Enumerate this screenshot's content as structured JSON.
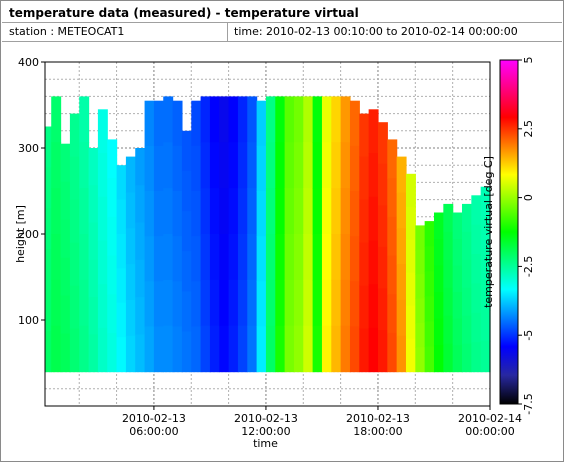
{
  "header": {
    "title": "temperature data (measured) - temperature virtual",
    "station": "station : METEOCAT1",
    "time_range": "time: 2010-02-13 00:10:00 to 2010-02-14 00:00:00"
  },
  "chart_data": {
    "type": "heatmap",
    "xlabel": "time",
    "ylabel": "height [m]",
    "colorbar_label": "temperature virtual [deg C]",
    "xlim": [
      "2010-02-13 00:10:00",
      "2010-02-14 00:00:00"
    ],
    "ylim": [
      0,
      400
    ],
    "clim": [
      -7.5,
      5
    ],
    "x_ticks": [
      {
        "time": "2010-02-13 06:00:00",
        "line1": "2010-02-13",
        "line2": "06:00:00"
      },
      {
        "time": "2010-02-13 12:00:00",
        "line1": "2010-02-13",
        "line2": "12:00:00"
      },
      {
        "time": "2010-02-13 18:00:00",
        "line1": "2010-02-13",
        "line2": "18:00:00"
      },
      {
        "time": "2010-02-14 00:00:00",
        "line1": "2010-02-14",
        "line2": "00:00:00"
      }
    ],
    "y_ticks": [
      100,
      200,
      300,
      400
    ],
    "colorbar_ticks": [
      5,
      2.5,
      0,
      -2.5,
      -5,
      -7.5
    ],
    "colormap": [
      "#000000",
      "#2828a0",
      "#0000ff",
      "#0080ff",
      "#00ffff",
      "#00ff80",
      "#00ff00",
      "#80ff00",
      "#ffff00",
      "#ff8000",
      "#ff0000",
      "#ff0080",
      "#ff00ff"
    ],
    "grid": true,
    "height_min_m": 40,
    "columns": [
      {
        "hour": 0.17,
        "top_m": 325,
        "temp": -2.2
      },
      {
        "hour": 0.5,
        "top_m": 360,
        "temp": -2.0
      },
      {
        "hour": 1.0,
        "top_m": 305,
        "temp": -2.1
      },
      {
        "hour": 1.5,
        "top_m": 340,
        "temp": -2.3
      },
      {
        "hour": 2.0,
        "top_m": 360,
        "temp": -2.5
      },
      {
        "hour": 2.5,
        "top_m": 300,
        "temp": -2.7
      },
      {
        "hour": 3.0,
        "top_m": 345,
        "temp": -3.0
      },
      {
        "hour": 3.5,
        "top_m": 310,
        "temp": -3.2
      },
      {
        "hour": 4.0,
        "top_m": 280,
        "temp": -3.5
      },
      {
        "hour": 4.5,
        "top_m": 290,
        "temp": -3.8
      },
      {
        "hour": 5.0,
        "top_m": 300,
        "temp": -4.0
      },
      {
        "hour": 5.5,
        "top_m": 355,
        "temp": -4.2
      },
      {
        "hour": 6.0,
        "top_m": 355,
        "temp": -4.4
      },
      {
        "hour": 6.5,
        "top_m": 360,
        "temp": -4.4
      },
      {
        "hour": 7.0,
        "top_m": 355,
        "temp": -4.5
      },
      {
        "hour": 7.5,
        "top_m": 320,
        "temp": -4.6
      },
      {
        "hour": 8.0,
        "top_m": 355,
        "temp": -4.7
      },
      {
        "hour": 8.5,
        "top_m": 360,
        "temp": -5.0
      },
      {
        "hour": 9.0,
        "top_m": 360,
        "temp": -5.3
      },
      {
        "hour": 9.5,
        "top_m": 360,
        "temp": -5.5
      },
      {
        "hour": 10.0,
        "top_m": 360,
        "temp": -5.3
      },
      {
        "hour": 10.5,
        "top_m": 360,
        "temp": -5.0
      },
      {
        "hour": 11.0,
        "top_m": 360,
        "temp": -4.6
      },
      {
        "hour": 11.5,
        "top_m": 355,
        "temp": -3.6
      },
      {
        "hour": 12.0,
        "top_m": 360,
        "temp": -2.2
      },
      {
        "hour": 12.5,
        "top_m": 360,
        "temp": -1.2
      },
      {
        "hour": 13.0,
        "top_m": 360,
        "temp": -0.4
      },
      {
        "hour": 13.5,
        "top_m": 360,
        "temp": -0.2
      },
      {
        "hour": 14.0,
        "top_m": 360,
        "temp": 0.3
      },
      {
        "hour": 14.5,
        "top_m": 360,
        "temp": -1.2
      },
      {
        "hour": 15.0,
        "top_m": 360,
        "temp": 0.8
      },
      {
        "hour": 15.5,
        "top_m": 360,
        "temp": 1.3
      },
      {
        "hour": 16.0,
        "top_m": 360,
        "temp": 1.8
      },
      {
        "hour": 16.5,
        "top_m": 355,
        "temp": 2.2
      },
      {
        "hour": 17.0,
        "top_m": 340,
        "temp": 2.6
      },
      {
        "hour": 17.5,
        "top_m": 345,
        "temp": 2.8
      },
      {
        "hour": 18.0,
        "top_m": 330,
        "temp": 2.6
      },
      {
        "hour": 18.5,
        "top_m": 310,
        "temp": 2.2
      },
      {
        "hour": 19.0,
        "top_m": 290,
        "temp": 1.6
      },
      {
        "hour": 19.5,
        "top_m": 270,
        "temp": 0.6
      },
      {
        "hour": 20.0,
        "top_m": 210,
        "temp": -0.2
      },
      {
        "hour": 20.5,
        "top_m": 215,
        "temp": -0.8
      },
      {
        "hour": 21.0,
        "top_m": 225,
        "temp": -1.4
      },
      {
        "hour": 21.5,
        "top_m": 235,
        "temp": -1.8
      },
      {
        "hour": 22.0,
        "top_m": 225,
        "temp": -2.1
      },
      {
        "hour": 22.5,
        "top_m": 235,
        "temp": -2.3
      },
      {
        "hour": 23.0,
        "top_m": 245,
        "temp": -2.5
      },
      {
        "hour": 23.5,
        "top_m": 255,
        "temp": -2.6
      }
    ]
  }
}
